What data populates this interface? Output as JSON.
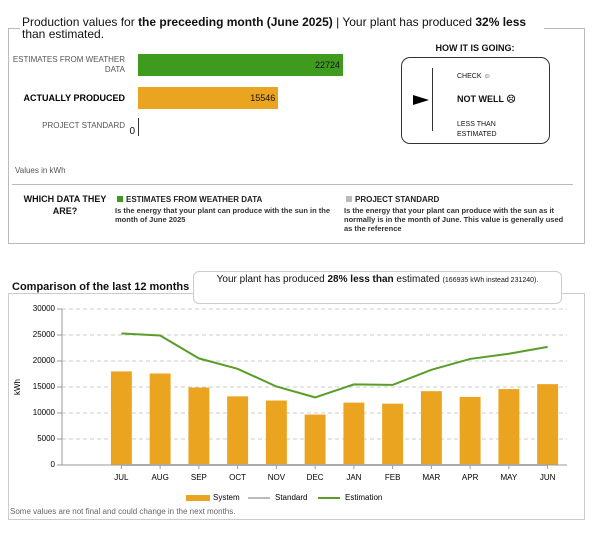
{
  "production_panel": {
    "header": [
      "Production values for ",
      "the preceeding month (June 2025)",
      " | Your plant has produced ",
      "32% less",
      " than estimated."
    ],
    "bars": [
      {
        "label": "ESTIMATES FROM WEATHER DATA",
        "value": 22724,
        "color": "#3f9b1e"
      },
      {
        "label": "ACTUALLY PRODUCED",
        "value": 15546,
        "color": "#eba41f"
      },
      {
        "label": "PROJECT STANDARD",
        "value": 0,
        "color": "#aaaaaa"
      }
    ],
    "units_note": "Values in kWh"
  },
  "status": {
    "title": "HOW IT IS GOING:",
    "levels": [
      "CHECK ☺",
      "NOT WELL ☹",
      "LESS THAN ESTIMATED"
    ]
  },
  "legend_info": {
    "title": "WHICH DATA THEY ARE?",
    "items": [
      {
        "name": "ESTIMATES FROM WEATHER DATA",
        "color": "#3f9b1e",
        "description": "Is the energy that your plant can produce with the sun in the month of June 2025"
      },
      {
        "name": "PROJECT STANDARD",
        "color": "#bbbbbb",
        "description": "Is the energy that your plant can produce with the sun as it normally is in the month of June.  This value is generally used as the reference"
      }
    ]
  },
  "comparison_message": [
    "Your plant has produced ",
    "28% less than",
    " estimated ",
    "(166935 kWh instead 231240)."
  ],
  "chart_data": {
    "type": "bar",
    "title": "Comparison of the last 12 months",
    "y_label": "kWh",
    "categories": [
      "JUL",
      "AUG",
      "SEP",
      "OCT",
      "NOV",
      "DEC",
      "JAN",
      "FEB",
      "MAR",
      "APR",
      "MAY",
      "JUN"
    ],
    "series": [
      {
        "name": "System",
        "type": "bar",
        "color": "#eba41f",
        "values": [
          18000,
          17600,
          14900,
          13200,
          12400,
          9700,
          12000,
          11800,
          14200,
          13100,
          14600,
          15546
        ]
      },
      {
        "name": "Standard",
        "type": "line",
        "color": "#bbbbbb",
        "values": [
          0,
          0,
          0,
          0,
          0,
          0,
          0,
          0,
          0,
          0,
          0,
          0
        ]
      },
      {
        "name": "Estimation",
        "type": "line",
        "color": "#5a9e2a",
        "values": [
          25300,
          24900,
          20500,
          18500,
          15100,
          13000,
          15500,
          15400,
          18300,
          20400,
          21400,
          22724
        ]
      }
    ],
    "ylim": [
      0,
      30000
    ],
    "yticks": [
      0,
      5000,
      10000,
      15000,
      20000,
      25000,
      30000
    ],
    "grid": true,
    "note": "Some values are not final and could change in the next months."
  }
}
